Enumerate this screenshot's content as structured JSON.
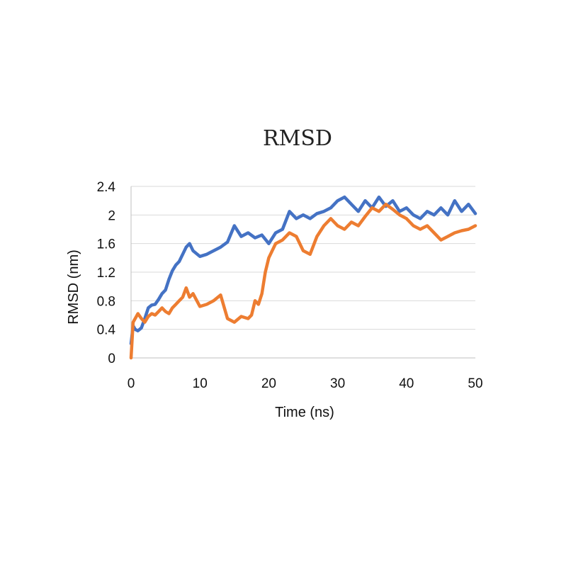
{
  "chart_data": {
    "type": "line",
    "title": "RMSD",
    "xlabel": "Time (ns)",
    "ylabel": "RMSD (nm)",
    "xlim": [
      0,
      50
    ],
    "ylim": [
      0,
      2.4
    ],
    "x_ticks": [
      "0",
      "10",
      "20",
      "30",
      "40",
      "50"
    ],
    "y_ticks": [
      "0",
      "0.4",
      "0.8",
      "1.2",
      "1.6",
      "2",
      "2.4"
    ],
    "grid": "horizontal",
    "legend": "none",
    "series": [
      {
        "color": "#4472C4",
        "x": [
          0,
          0.3,
          0.6,
          1,
          1.5,
          2,
          2.5,
          3,
          3.5,
          4,
          4.5,
          5,
          5.5,
          6,
          6.5,
          7,
          7.5,
          8,
          8.5,
          9,
          10,
          11,
          12,
          13,
          14,
          15,
          16,
          17,
          18,
          19,
          20,
          21,
          22,
          23,
          24,
          25,
          26,
          27,
          28,
          29,
          30,
          31,
          32,
          33,
          34,
          35,
          36,
          37,
          38,
          39,
          40,
          41,
          42,
          43,
          44,
          45,
          46,
          47,
          48,
          49,
          50
        ],
        "values": [
          0.2,
          0.45,
          0.4,
          0.38,
          0.42,
          0.55,
          0.7,
          0.74,
          0.75,
          0.82,
          0.9,
          0.95,
          1.1,
          1.22,
          1.3,
          1.35,
          1.45,
          1.55,
          1.6,
          1.5,
          1.42,
          1.45,
          1.5,
          1.55,
          1.62,
          1.85,
          1.7,
          1.75,
          1.68,
          1.72,
          1.6,
          1.75,
          1.8,
          2.05,
          1.95,
          2.0,
          1.95,
          2.02,
          2.05,
          2.1,
          2.2,
          2.25,
          2.15,
          2.05,
          2.2,
          2.1,
          2.25,
          2.12,
          2.2,
          2.05,
          2.1,
          2.0,
          1.95,
          2.05,
          2.0,
          2.1,
          2.0,
          2.2,
          2.05,
          2.15,
          2.02
        ]
      },
      {
        "color": "#ED7D31",
        "x": [
          0,
          0.3,
          0.6,
          1,
          1.5,
          2,
          2.5,
          3,
          3.5,
          4,
          4.5,
          5,
          5.5,
          6,
          6.5,
          7,
          7.5,
          8,
          8.5,
          9,
          10,
          11,
          12,
          13,
          14,
          15,
          16,
          17,
          17.5,
          18,
          18.5,
          19,
          19.5,
          20,
          21,
          22,
          23,
          24,
          25,
          26,
          27,
          28,
          29,
          30,
          31,
          32,
          33,
          34,
          35,
          36,
          37,
          38,
          39,
          40,
          41,
          42,
          43,
          44,
          45,
          46,
          47,
          48,
          49,
          50
        ],
        "values": [
          0.0,
          0.5,
          0.55,
          0.62,
          0.55,
          0.5,
          0.58,
          0.62,
          0.6,
          0.65,
          0.7,
          0.65,
          0.62,
          0.7,
          0.75,
          0.8,
          0.85,
          0.98,
          0.85,
          0.9,
          0.72,
          0.75,
          0.8,
          0.88,
          0.55,
          0.5,
          0.58,
          0.55,
          0.6,
          0.8,
          0.75,
          0.9,
          1.2,
          1.4,
          1.6,
          1.65,
          1.75,
          1.7,
          1.5,
          1.45,
          1.7,
          1.85,
          1.95,
          1.85,
          1.8,
          1.9,
          1.85,
          1.98,
          2.1,
          2.05,
          2.15,
          2.08,
          2.0,
          1.95,
          1.85,
          1.8,
          1.85,
          1.75,
          1.65,
          1.7,
          1.75,
          1.78,
          1.8,
          1.85
        ]
      }
    ]
  }
}
